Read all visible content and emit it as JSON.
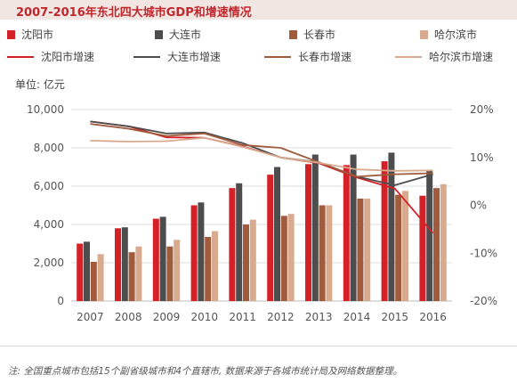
{
  "header": {
    "title": "2007-2016年东北四大城市GDP和增速情况"
  },
  "unit_label": "单位: 亿元",
  "footnote": "注: 全国重点城市包括15个副省级城市和4个直辖市, 数据来源于各城市统计局及网络数据整理。",
  "colors": {
    "title": "#c0272d",
    "title_bg": "#f2e6e3",
    "shenyang": "#d42027",
    "dalian": "#4d4d4d",
    "changchun": "#a05a3c",
    "harbin": "#d8aa90",
    "grid": "#dcdcdc"
  },
  "chart_data": {
    "type": "bar",
    "categories": [
      "2007",
      "2008",
      "2009",
      "2010",
      "2011",
      "2012",
      "2013",
      "2014",
      "2015",
      "2016"
    ],
    "series": [
      {
        "name": "沈阳市",
        "kind": "bar",
        "axis": "left",
        "color": "#d42027",
        "values": [
          3000,
          3800,
          4300,
          5000,
          5900,
          6600,
          7150,
          7100,
          7300,
          5500
        ]
      },
      {
        "name": "大连市",
        "kind": "bar",
        "axis": "left",
        "color": "#4d4d4d",
        "values": [
          3100,
          3850,
          4400,
          5150,
          6150,
          7000,
          7650,
          7650,
          7750,
          6800
        ]
      },
      {
        "name": "长春市",
        "kind": "bar",
        "axis": "left",
        "color": "#a05a3c",
        "values": [
          2050,
          2550,
          2850,
          3350,
          4000,
          4450,
          5000,
          5350,
          5550,
          5900
        ]
      },
      {
        "name": "哈尔滨市",
        "kind": "bar",
        "axis": "left",
        "color": "#d8aa90",
        "values": [
          2450,
          2850,
          3200,
          3650,
          4250,
          4550,
          5000,
          5350,
          5750,
          6100
        ]
      },
      {
        "name": "沈阳市增速",
        "kind": "line",
        "axis": "right",
        "color": "#d42027",
        "values": [
          17.5,
          16.5,
          14.2,
          14.1,
          12.3,
          10.0,
          8.8,
          5.8,
          3.5,
          -5.8
        ]
      },
      {
        "name": "大连市增速",
        "kind": "line",
        "axis": "right",
        "color": "#4d4d4d",
        "values": [
          17.5,
          16.5,
          15.0,
          15.2,
          13.0,
          10.0,
          9.0,
          6.0,
          4.2,
          6.5
        ]
      },
      {
        "name": "长春市增速",
        "kind": "line",
        "axis": "right",
        "color": "#a05a3c",
        "values": [
          17.0,
          16.0,
          14.5,
          15.0,
          12.6,
          12.0,
          9.0,
          6.0,
          6.5,
          6.7
        ]
      },
      {
        "name": "哈尔滨市增速",
        "kind": "line",
        "axis": "right",
        "color": "#d8aa90",
        "values": [
          13.5,
          13.3,
          13.4,
          14.1,
          12.2,
          10.0,
          8.9,
          7.5,
          7.2,
          7.3
        ]
      }
    ],
    "ylim_left": [
      0,
      10000
    ],
    "yticks_left": [
      "0",
      "2,000",
      "4,000",
      "6,000",
      "8,000",
      "10,000"
    ],
    "ylim_right": [
      -20,
      20
    ],
    "yticks_right": [
      "-20%",
      "-10%",
      "0%",
      "10%",
      "20%"
    ],
    "grid": true,
    "legend_position": "top"
  }
}
